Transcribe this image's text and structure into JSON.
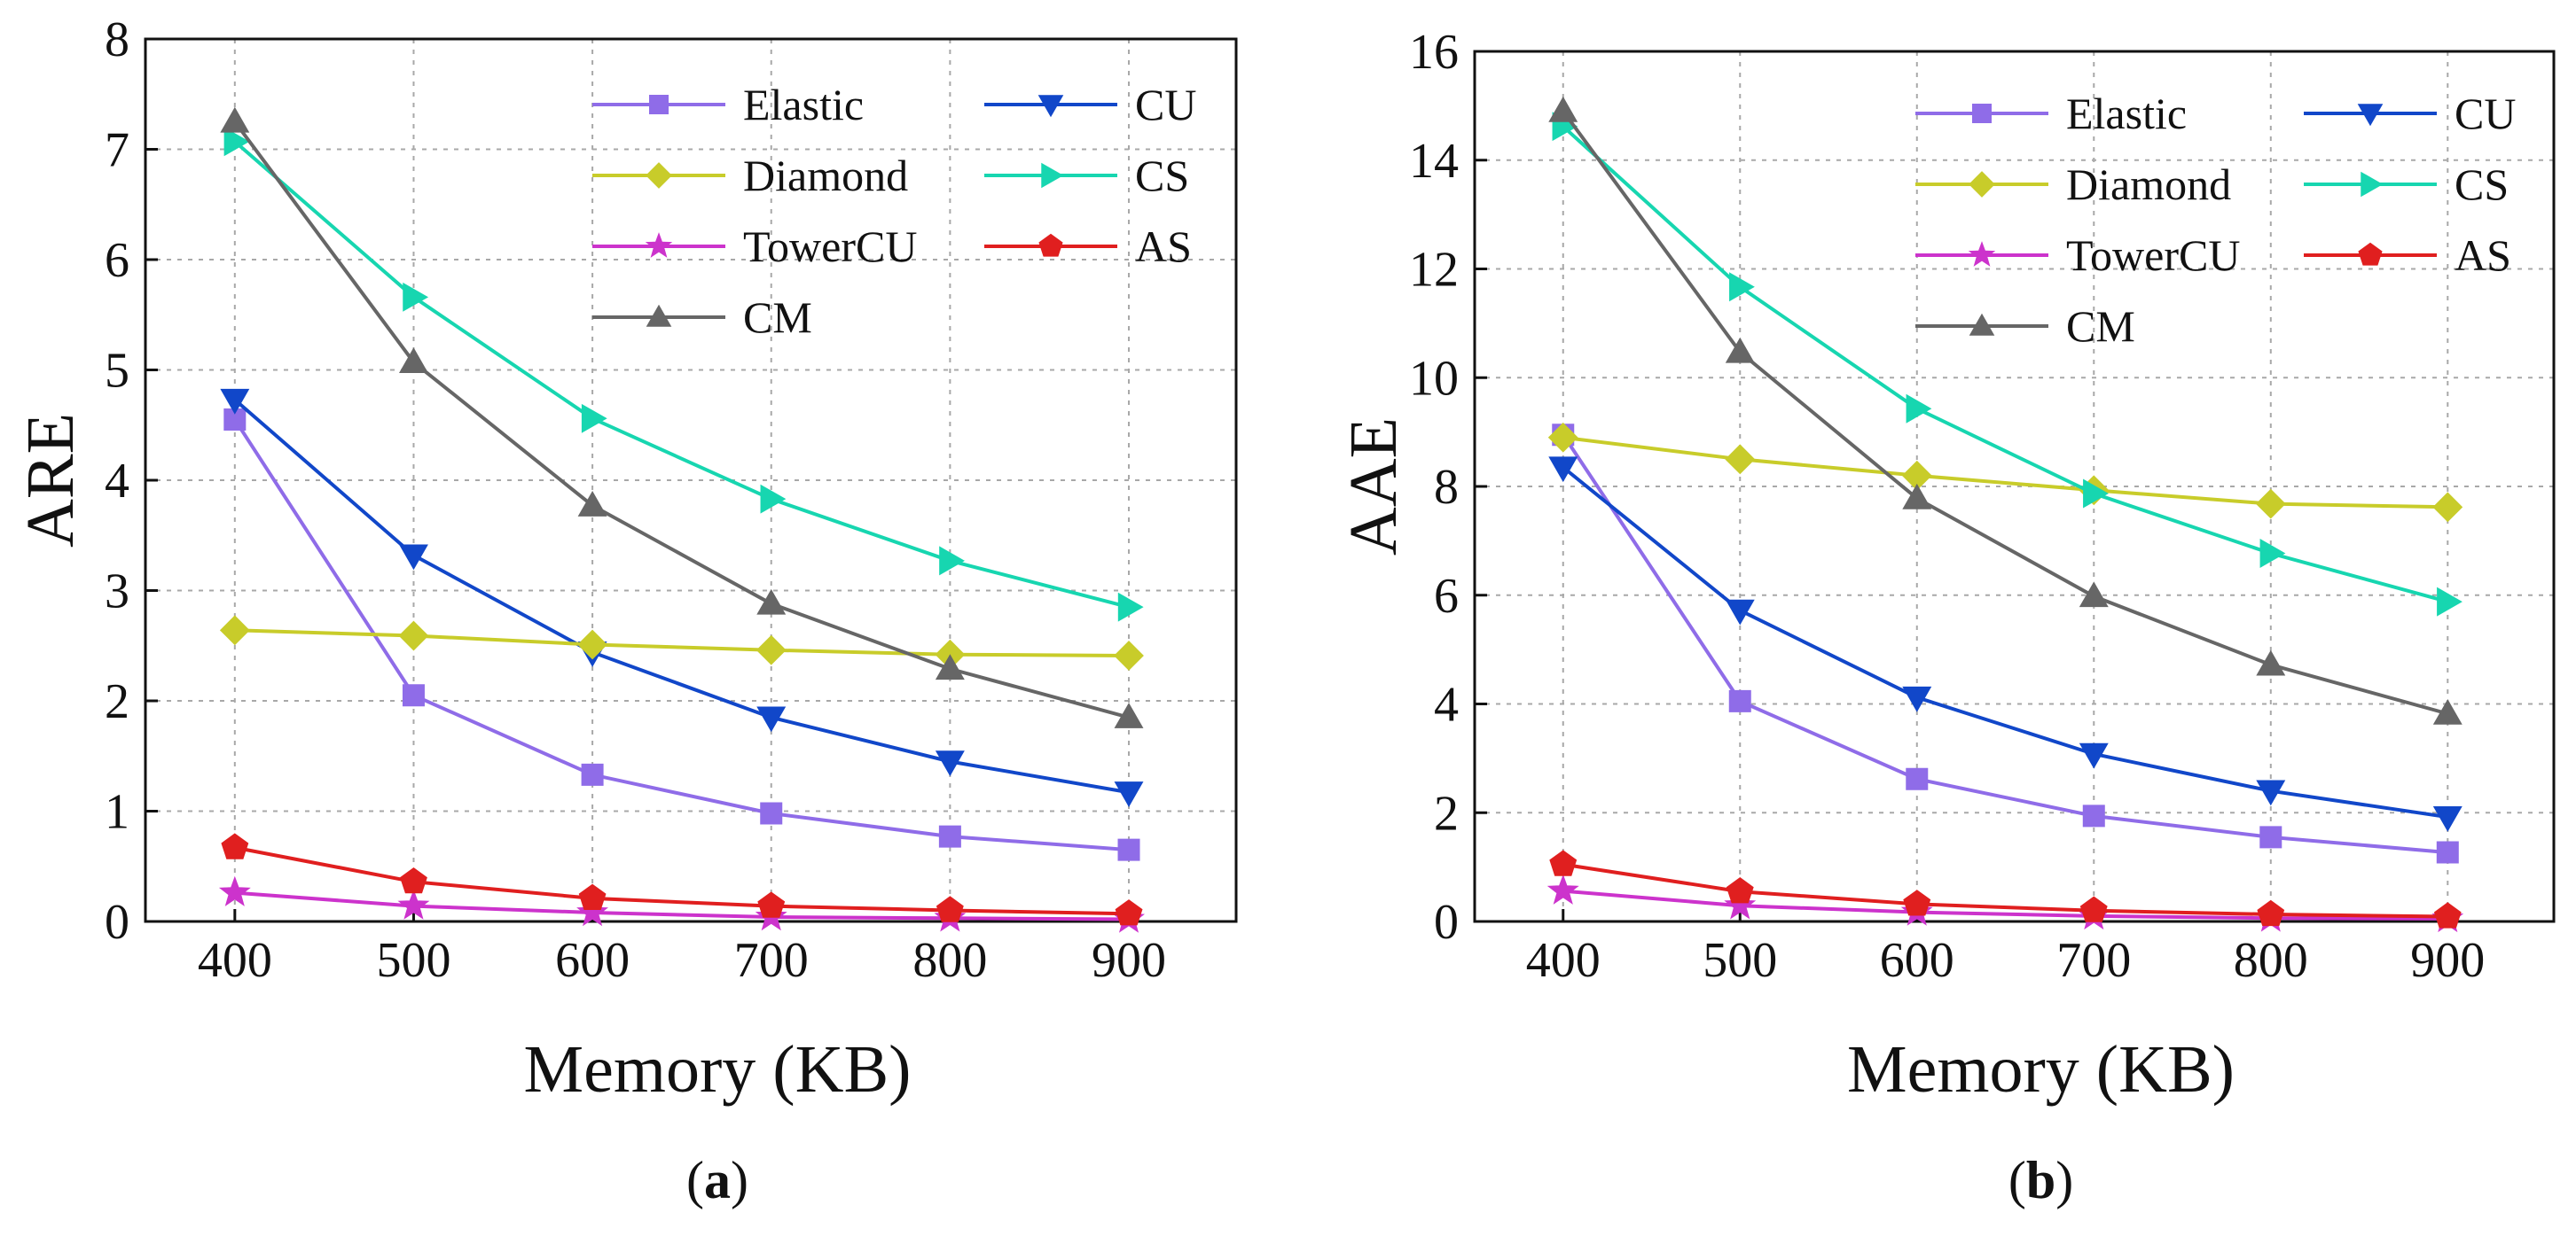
{
  "chart_data": [
    {
      "type": "line",
      "panel_label": "a",
      "xlabel": "Memory (KB)",
      "ylabel": "ARE",
      "x": [
        400,
        500,
        600,
        700,
        800,
        900
      ],
      "xticks": [
        "400",
        "500",
        "600",
        "700",
        "800",
        "900"
      ],
      "ylim": [
        0,
        8
      ],
      "yticks": [
        "0",
        "1",
        "2",
        "3",
        "4",
        "5",
        "6",
        "7",
        "8"
      ],
      "grid": true,
      "legend_position": "top-right",
      "series": [
        {
          "name": "Elastic",
          "color": "#8F6CE8",
          "marker": "square",
          "values": [
            4.55,
            2.05,
            1.33,
            0.98,
            0.77,
            0.65
          ]
        },
        {
          "name": "CU",
          "color": "#1147C9",
          "marker": "triangle-down",
          "values": [
            4.73,
            3.32,
            2.44,
            1.85,
            1.45,
            1.17
          ]
        },
        {
          "name": "Diamond",
          "color": "#C8CC2A",
          "marker": "diamond",
          "values": [
            2.64,
            2.59,
            2.51,
            2.46,
            2.42,
            2.41
          ]
        },
        {
          "name": "CS",
          "color": "#17D6B0",
          "marker": "triangle-right",
          "values": [
            7.07,
            5.66,
            4.56,
            3.83,
            3.27,
            2.85
          ]
        },
        {
          "name": "TowerCU",
          "color": "#CC33CC",
          "marker": "star",
          "values": [
            0.26,
            0.14,
            0.08,
            0.04,
            0.03,
            0.02
          ]
        },
        {
          "name": "AS",
          "color": "#E01F1F",
          "marker": "pentagon",
          "values": [
            0.67,
            0.36,
            0.21,
            0.14,
            0.1,
            0.07
          ]
        },
        {
          "name": "CM",
          "color": "#666666",
          "marker": "triangle-up",
          "values": [
            7.25,
            5.07,
            3.77,
            2.88,
            2.29,
            1.85
          ]
        }
      ]
    },
    {
      "type": "line",
      "panel_label": "b",
      "xlabel": "Memory (KB)",
      "ylabel": "AAE",
      "x": [
        400,
        500,
        600,
        700,
        800,
        900
      ],
      "xticks": [
        "400",
        "500",
        "600",
        "700",
        "800",
        "900"
      ],
      "ylim": [
        0,
        16
      ],
      "yticks": [
        "0",
        "2",
        "4",
        "6",
        "8",
        "10",
        "12",
        "14",
        "16"
      ],
      "grid": true,
      "legend_position": "top-right",
      "series": [
        {
          "name": "Elastic",
          "color": "#8F6CE8",
          "marker": "square",
          "values": [
            8.95,
            4.05,
            2.62,
            1.94,
            1.55,
            1.27
          ]
        },
        {
          "name": "CU",
          "color": "#1147C9",
          "marker": "triangle-down",
          "values": [
            8.35,
            5.72,
            4.12,
            3.08,
            2.4,
            1.92
          ]
        },
        {
          "name": "Diamond",
          "color": "#C8CC2A",
          "marker": "diamond",
          "values": [
            8.9,
            8.5,
            8.2,
            7.93,
            7.68,
            7.62
          ]
        },
        {
          "name": "CS",
          "color": "#17D6B0",
          "marker": "triangle-right",
          "values": [
            14.62,
            11.67,
            9.43,
            7.87,
            6.77,
            5.88
          ]
        },
        {
          "name": "TowerCU",
          "color": "#CC33CC",
          "marker": "star",
          "values": [
            0.56,
            0.29,
            0.17,
            0.1,
            0.06,
            0.05
          ]
        },
        {
          "name": "AS",
          "color": "#E01F1F",
          "marker": "pentagon",
          "values": [
            1.05,
            0.55,
            0.32,
            0.2,
            0.13,
            0.09
          ]
        },
        {
          "name": "CM",
          "color": "#666666",
          "marker": "triangle-up",
          "values": [
            14.9,
            10.47,
            7.78,
            5.98,
            4.72,
            3.82
          ]
        }
      ]
    }
  ]
}
